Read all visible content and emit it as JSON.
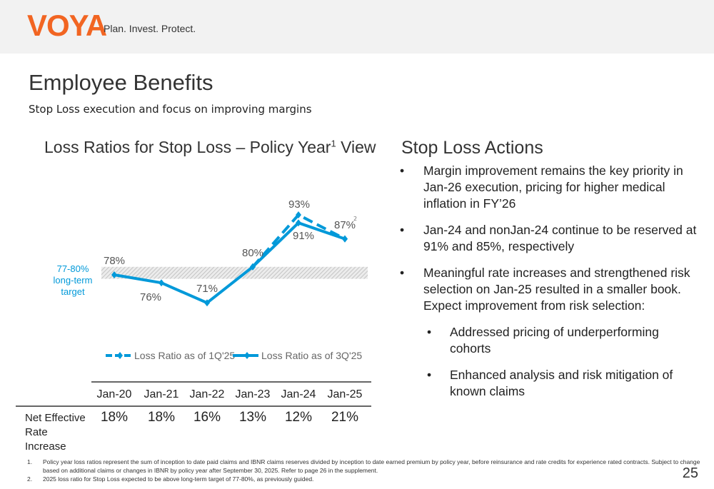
{
  "header": {
    "logo": "VOYA",
    "tagline": "Plan. Invest. Protect."
  },
  "page": {
    "title": "Employee Benefits",
    "subtitle": "Stop Loss execution and focus on improving margins",
    "number": "25"
  },
  "chart_data": {
    "type": "line",
    "title": "Loss Ratios for Stop Loss – Policy Year",
    "title_sup": "1",
    "title_suffix": " View",
    "categories": [
      "Jan-20",
      "Jan-21",
      "Jan-22",
      "Jan-23",
      "Jan-24",
      "Jan-25"
    ],
    "series": [
      {
        "name": "Loss Ratio as of 1Q'25",
        "style": "dashed",
        "values": [
          null,
          null,
          null,
          80,
          93,
          87
        ],
        "labels": [
          "",
          "",
          "",
          "",
          "93%",
          ""
        ]
      },
      {
        "name": "Loss Ratio as of 3Q'25",
        "style": "solid",
        "values": [
          78,
          76,
          71,
          80,
          91,
          87
        ],
        "labels": [
          "78%",
          "76%",
          "71%",
          "80%",
          "91%",
          "87%"
        ]
      }
    ],
    "footnote_mark": "2",
    "target_band": {
      "range": [
        77,
        80
      ],
      "label": [
        "77-80%",
        "long-term",
        "target"
      ]
    },
    "color": "#0099d9",
    "band_color": "#d9d9d9",
    "table": {
      "row_label": "Net Effective Rate Increase",
      "values": [
        "18%",
        "18%",
        "16%",
        "13%",
        "12%",
        "21%"
      ]
    }
  },
  "actions": {
    "title": "Stop Loss Actions",
    "items": [
      {
        "text": "Margin improvement remains the key priority in Jan-26 execution, pricing for higher medical inflation in FY’26",
        "level": 1
      },
      {
        "text": "Jan-24 and nonJan-24 continue to be reserved at 91% and 85%, respectively",
        "level": 1
      },
      {
        "text": "Meaningful rate increases and strengthened risk selection on Jan-25 resulted in a smaller book. Expect improvement from risk selection:",
        "level": 1
      },
      {
        "text": "Addressed pricing of underperforming cohorts",
        "level": 2
      },
      {
        "text": "Enhanced analysis and risk mitigation of known claims",
        "level": 2
      }
    ]
  },
  "footnotes": [
    {
      "n": "1.",
      "text": "Policy year loss ratios represent the sum of inception to date paid claims and IBNR claims reserves divided by inception to date earned premium by policy year, before reinsurance and rate credits for experience rated contracts. Subject to change based on additional claims or changes in IBNR by policy year after September 30, 2025. Refer to page 26 in the supplement."
    },
    {
      "n": "2.",
      "text": "2025 loss ratio for Stop Loss expected to be above long-term target of 77-80%, as previously guided."
    }
  ]
}
